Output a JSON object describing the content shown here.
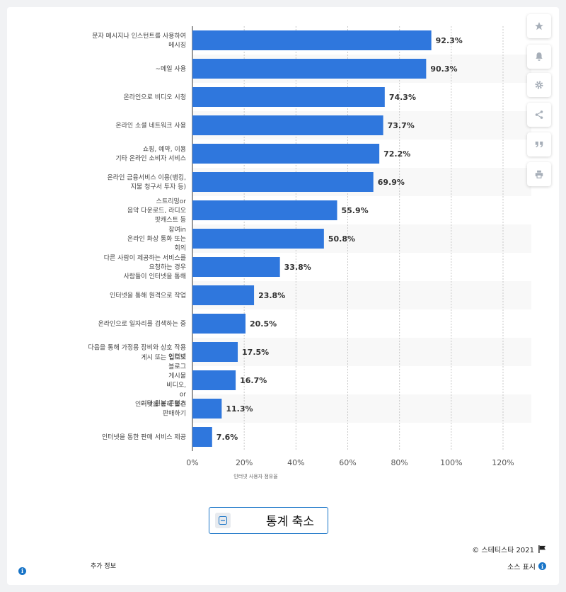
{
  "chart_data": {
    "type": "bar",
    "orientation": "horizontal",
    "categories": [
      [
        "문자 메시지나 인스턴트를 사용하여",
        "메시징"
      ],
      [
        "~메일 사용"
      ],
      [
        "온라인으로 비디오 시청"
      ],
      [
        "온라인 소셜 네트워크 사용"
      ],
      [
        "쇼핑, 예약, 이용",
        "기타 온라인 소비자 서비스"
      ],
      [
        "온라인 금융서비스 이용(뱅킹,",
        "지불 청구서 투자 등)"
      ],
      [
        "스트리밍or",
        "음악 다운로드, 라디오",
        "팟캐스트 등"
      ],
      [
        "참여in",
        "온라인 화상 통화 또는",
        "회의"
      ],
      [
        "다른 사람이 제공하는 서비스를",
        "요청하는 경우",
        "사람들이 인터넷을 통해"
      ],
      [
        "인터넷을 통해 원격으로 작업"
      ],
      [
        "온라인으로 일자리를 검색하는 중"
      ],
      [
        "다음을 통해 가정용 장비와 상호 작용",
        "인터넷"
      ],
      [
        "게시 또는 업로드",
        "블로그",
        "게시물",
        "비디오,",
        "or",
        "기타 원본 콘텐츠"
      ],
      [
        "인터넷을 통해 물건",
        "판매하기"
      ],
      [
        "인터넷을 통한 판매 서비스 제공"
      ]
    ],
    "values": [
      92.3,
      90.3,
      74.3,
      73.7,
      72.2,
      69.9,
      55.9,
      50.8,
      33.8,
      23.8,
      20.5,
      17.5,
      16.7,
      11.3,
      7.6
    ],
    "value_labels": [
      "92.3%",
      "90.3%",
      "74.3%",
      "73.7%",
      "72.2%",
      "69.9%",
      "55.9%",
      "50.8%",
      "33.8%",
      "23.8%",
      "20.5%",
      "17.5%",
      "16.7%",
      "11.3%",
      "7.6%"
    ],
    "xlim": [
      0,
      120
    ],
    "x_ticks": [
      "0%",
      "20%",
      "40%",
      "60%",
      "80%",
      "100%",
      "120%"
    ],
    "xlabel": "인터넷 사용자 점유율",
    "ylabel": "",
    "grid": true,
    "bar_color": "#2f77dd"
  },
  "controls": {
    "collapse_label": "통계 축소",
    "copyright": "© 스테티스타 2021",
    "extra_info": "추가 정보",
    "show_source": "소스 표시"
  },
  "icons": [
    "star-icon",
    "bell-icon",
    "gear-icon",
    "share-icon",
    "quote-icon",
    "print-icon",
    "minus-icon",
    "flag-icon",
    "info-icon"
  ],
  "colors": {
    "accent": "#1874c7",
    "bar": "#2f77dd",
    "icon_gray": "#a6aeb8"
  }
}
